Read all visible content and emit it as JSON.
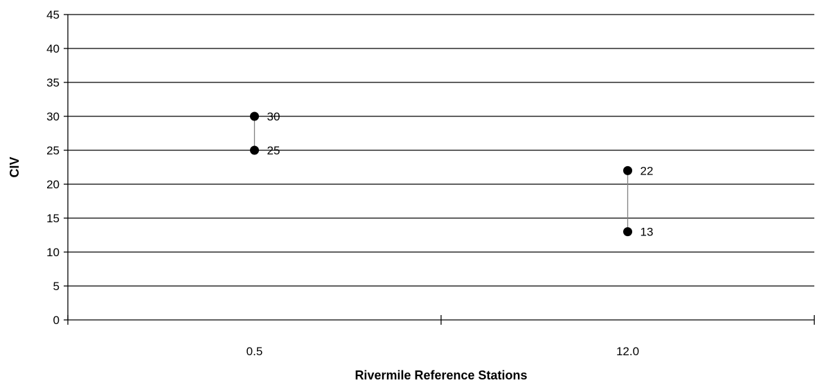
{
  "chart_data": {
    "type": "scatter",
    "title": "",
    "xlabel": "Rivermile Reference Stations",
    "ylabel": "CIV",
    "categories": [
      "0.5",
      "12.0"
    ],
    "ylim": [
      0,
      45
    ],
    "yticks": [
      0,
      5,
      10,
      15,
      20,
      25,
      30,
      35,
      40,
      45
    ],
    "grid": true,
    "legend": "none",
    "series": [
      {
        "values": [
          30,
          22
        ]
      },
      {
        "values": [
          25,
          13
        ]
      }
    ],
    "ranges": [
      {
        "category": "0.5",
        "high": 30,
        "low": 25
      },
      {
        "category": "12.0",
        "high": 22,
        "low": 13
      }
    ],
    "colors": {
      "marker": "#000000",
      "range_line": "#808080",
      "grid": "#000000"
    }
  }
}
